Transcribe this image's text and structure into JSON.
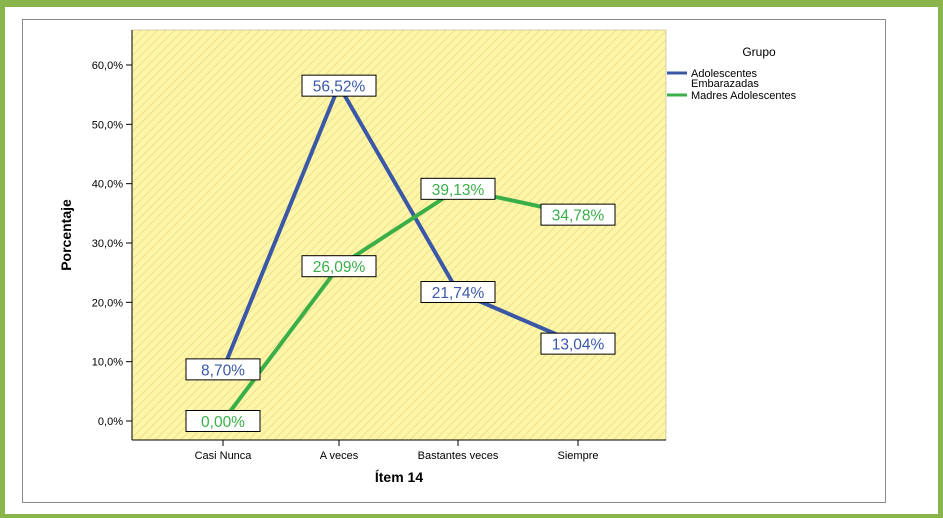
{
  "chart_data": {
    "type": "line",
    "title": "",
    "xlabel": "Ítem 14",
    "ylabel": "Porcentaje",
    "categories": [
      "Casi Nunca",
      "A veces",
      "Bastantes veces",
      "Siempre"
    ],
    "ylim": [
      0,
      60
    ],
    "yticks": [
      "0,0%",
      "10,0%",
      "20,0%",
      "30,0%",
      "40,0%",
      "50,0%",
      "60,0%"
    ],
    "legend": {
      "title": "Grupo",
      "placement": "right"
    },
    "series": [
      {
        "name_lines": [
          "Adolescentes",
          "Embarazadas"
        ],
        "color": "#3a58a6",
        "values": [
          8.7,
          56.52,
          21.74,
          13.04
        ],
        "labels": [
          "8,70%",
          "56,52%",
          "21,74%",
          "13,04%"
        ]
      },
      {
        "name_lines": [
          "Madres Adolescentes"
        ],
        "color": "#3aaf48",
        "values": [
          0.0,
          26.09,
          39.13,
          34.78
        ],
        "labels": [
          "0,00%",
          "26,09%",
          "39,13%",
          "34,78%"
        ]
      }
    ],
    "plot_background": "#fdf5a8",
    "grid": false
  }
}
